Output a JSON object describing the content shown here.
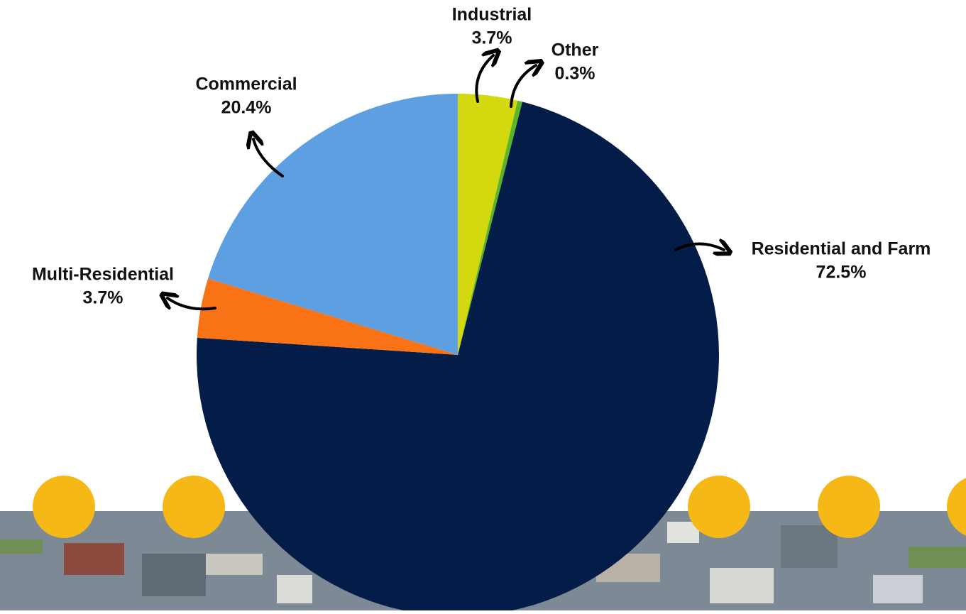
{
  "chart_data": {
    "type": "pie",
    "categories": [
      "Industrial",
      "Other",
      "Residential and Farm",
      "Multi-Residential",
      "Commercial"
    ],
    "values": [
      3.7,
      0.3,
      72.5,
      3.7,
      20.4
    ],
    "value_labels": [
      "3.7%",
      "0.3%",
      "72.5%",
      "3.7%",
      "20.4%"
    ],
    "colors": [
      "#d4d80f",
      "#5ab52a",
      "#041d48",
      "#f97316",
      "#5d9fe1"
    ]
  }
}
